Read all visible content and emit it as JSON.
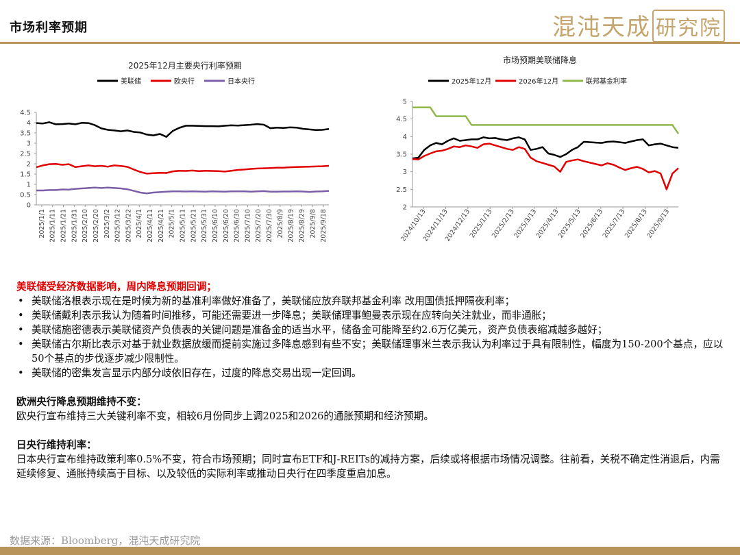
{
  "header": {
    "title": "市场利率预期",
    "logo_text": "混沌天成",
    "logo_box": "研究院"
  },
  "chart_data": [
    {
      "type": "line",
      "title": "2025年12月主要央行利率预期",
      "ylim": [
        0,
        4.5
      ],
      "yticks": [
        "0",
        "0.5",
        "1",
        "1.5",
        "2",
        "2.5",
        "3",
        "3.5",
        "4",
        "4.5"
      ],
      "xticks": [
        "2025/1/1",
        "2025/1/11",
        "2025/1/21",
        "2025/1/31",
        "2025/2/10",
        "2025/2/20",
        "2025/3/2",
        "2025/3/12",
        "2025/3/22",
        "2025/4/1",
        "2025/4/11",
        "2025/4/21",
        "2025/5/1",
        "2025/5/11",
        "2025/5/21",
        "2025/5/31",
        "2025/6/10",
        "2025/6/20",
        "2025/6/30",
        "2025/7/10",
        "2025/7/20",
        "2025/7/30",
        "2025/8/9",
        "2025/8/19",
        "2025/8/29",
        "2025/9/8",
        "2025/9/18"
      ],
      "legend_position": "top",
      "grid": false,
      "series": [
        {
          "name": "美联储",
          "color": "#000000",
          "values": [
            3.98,
            3.96,
            4.02,
            3.92,
            3.93,
            3.96,
            3.92,
            3.99,
            3.98,
            3.88,
            3.72,
            3.65,
            3.62,
            3.58,
            3.62,
            3.55,
            3.52,
            3.42,
            3.38,
            3.45,
            3.31,
            3.6,
            3.75,
            3.85,
            3.85,
            3.84,
            3.83,
            3.83,
            3.82,
            3.85,
            3.87,
            3.86,
            3.88,
            3.9,
            3.93,
            3.9,
            3.73,
            3.76,
            3.74,
            3.77,
            3.76,
            3.7,
            3.67,
            3.64,
            3.65,
            3.69
          ]
        },
        {
          "name": "欧央行",
          "color": "#e00000",
          "values": [
            1.83,
            1.92,
            1.98,
            1.99,
            1.95,
            1.98,
            1.84,
            1.88,
            1.92,
            1.88,
            1.9,
            1.86,
            1.92,
            1.89,
            1.85,
            1.72,
            1.6,
            1.52,
            1.54,
            1.56,
            1.55,
            1.63,
            1.66,
            1.65,
            1.67,
            1.64,
            1.66,
            1.65,
            1.64,
            1.62,
            1.66,
            1.7,
            1.72,
            1.75,
            1.77,
            1.78,
            1.79,
            1.81,
            1.81,
            1.83,
            1.84,
            1.85,
            1.86,
            1.87,
            1.88,
            1.9
          ]
        },
        {
          "name": "日本央行",
          "color": "#7b5ea7",
          "values": [
            0.7,
            0.7,
            0.72,
            0.72,
            0.75,
            0.74,
            0.78,
            0.8,
            0.82,
            0.84,
            0.82,
            0.84,
            0.82,
            0.8,
            0.76,
            0.68,
            0.6,
            0.56,
            0.6,
            0.62,
            0.64,
            0.66,
            0.66,
            0.65,
            0.66,
            0.65,
            0.64,
            0.66,
            0.65,
            0.64,
            0.66,
            0.66,
            0.66,
            0.64,
            0.66,
            0.67,
            0.64,
            0.64,
            0.65,
            0.65,
            0.66,
            0.65,
            0.63,
            0.65,
            0.66,
            0.68
          ]
        }
      ]
    },
    {
      "type": "line",
      "title": "市场预期美联储降息",
      "ylim": [
        2,
        5
      ],
      "yticks": [
        "2",
        "2.5",
        "3",
        "3.5",
        "4",
        "4.5",
        "5"
      ],
      "xticks": [
        "2024/10/13",
        "2024/11/13",
        "2024/12/13",
        "2025/1/13",
        "2025/2/13",
        "2025/3/13",
        "2025/4/13",
        "2025/5/13",
        "2025/6/13",
        "2025/7/13",
        "2025/8/13",
        "2025/9/13"
      ],
      "legend_position": "top",
      "grid": false,
      "series": [
        {
          "name": "2025年12月",
          "color": "#000000",
          "values": [
            3.38,
            3.4,
            3.62,
            3.75,
            3.82,
            3.78,
            3.88,
            3.95,
            3.88,
            3.9,
            3.92,
            3.92,
            3.98,
            3.95,
            3.96,
            3.92,
            3.9,
            3.95,
            3.98,
            3.92,
            3.62,
            3.65,
            3.7,
            3.52,
            3.48,
            3.42,
            3.5,
            3.62,
            3.7,
            3.85,
            3.84,
            3.83,
            3.82,
            3.85,
            3.86,
            3.84,
            3.82,
            3.86,
            3.9,
            3.92,
            3.75,
            3.78,
            3.8,
            3.75,
            3.7,
            3.68
          ]
        },
        {
          "name": "2026年12月",
          "color": "#e00000",
          "values": [
            3.36,
            3.35,
            3.45,
            3.52,
            3.58,
            3.6,
            3.65,
            3.72,
            3.7,
            3.75,
            3.72,
            3.68,
            3.78,
            3.8,
            3.75,
            3.7,
            3.65,
            3.62,
            3.7,
            3.65,
            3.4,
            3.3,
            3.25,
            3.2,
            3.15,
            3.0,
            3.28,
            3.32,
            3.35,
            3.3,
            3.26,
            3.22,
            3.18,
            3.24,
            3.2,
            3.12,
            3.05,
            3.1,
            3.14,
            3.08,
            2.98,
            3.02,
            2.95,
            2.5,
            2.95,
            3.1
          ]
        },
        {
          "name": "联邦基金利率",
          "color": "#8fb84a",
          "values": [
            4.83,
            4.83,
            4.83,
            4.83,
            4.58,
            4.58,
            4.58,
            4.58,
            4.58,
            4.58,
            4.33,
            4.33,
            4.33,
            4.33,
            4.33,
            4.33,
            4.33,
            4.33,
            4.33,
            4.33,
            4.33,
            4.33,
            4.33,
            4.33,
            4.33,
            4.33,
            4.33,
            4.33,
            4.33,
            4.33,
            4.33,
            4.33,
            4.33,
            4.33,
            4.33,
            4.33,
            4.33,
            4.33,
            4.33,
            4.33,
            4.33,
            4.33,
            4.33,
            4.33,
            4.33,
            4.08
          ]
        }
      ]
    }
  ],
  "text": {
    "fed_title": "美联储受经济数据影响，周内降息预期回调；",
    "fed_bullets": [
      "美联储洛根表示现在是时候为新的基准利率做好准备了，美联储应放弃联邦基金利率 改用国债抵押隔夜利率；",
      "美联储戴利表示我认为随着时间推移，可能还需要进一步降息；美联储理事鲍曼表示现在应转向关注就业，而非通胀；",
      "美联储施密德表示美联储资产负债表的关键问题是准备金的适当水平，储备金可能降至约2.6万亿美元，资产负债表缩减越多越好；",
      "美联储古尔斯比表示对基于就业数据放缓而提前实施过多降息感到有些不安；美联储理事米兰表示我认为利率过于具有限制性，幅度为150-200个基点，应以50个基点的步伐逐步减少限制性。",
      "美联储的密集发言显示内部分歧依旧存在，过度的降息交易出现一定回调。"
    ],
    "ecb_title": "欧洲央行降息预期维持不变：",
    "ecb_body": "欧央行宣布维持三大关键利率不变，相较6月份同步上调2025和2026的通胀预期和经济预期。",
    "boj_title": "日央行维持利率：",
    "boj_body": "日本央行宣布维持政策利率0.5%不变，符合市场预期；同时宣布ETF和J-REITs的减持方案，后续或将根据市场情况调整。往前看，关税不确定性消退后，内需延续修复、通胀持续高于目标、以及较低的实际利率或推动日央行在四季度重启加息。"
  },
  "source": "数据来源：Bloomberg，混沌天成研究院"
}
